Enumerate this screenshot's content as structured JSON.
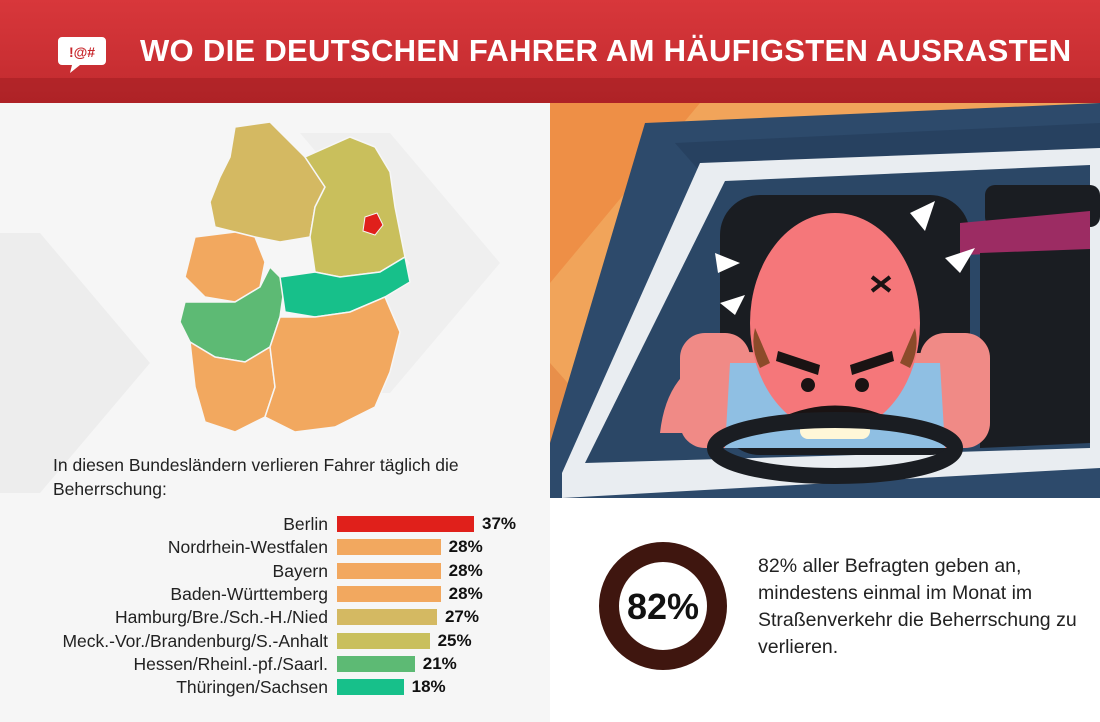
{
  "header": {
    "title": "WO DIE DEUTSCHEN FAHRER AM HÄUFIGSTEN AUSRASTEN",
    "logo_text": "!@#"
  },
  "colors": {
    "header_red": "#d03236",
    "berlin_red": "#e0201b",
    "orange": "#f2a85f",
    "olive": "#cabb5d",
    "green_mid": "#5dbd78",
    "green": "#1fbf86",
    "donut_dark": "#3f160f",
    "donut_red": "#e21b1b"
  },
  "intro_text": "In diesen Bundesländern verlieren Fahrer täglich die Beherrschung:",
  "chart_data": {
    "type": "bar",
    "orientation": "horizontal",
    "categories": [
      "Berlin",
      "Nordrhein-Westfalen",
      "Bayern",
      "Baden-Württemberg",
      "Hamburg/Bre./Sch.-H./Nied",
      "Meck.-Vor./Brandenburg/S.-Anhalt",
      "Hessen/Rheinl.-pf./Saarl.",
      "Thüringen/Sachsen"
    ],
    "values": [
      37,
      28,
      28,
      28,
      27,
      25,
      21,
      18
    ],
    "value_labels": [
      "37%",
      "28%",
      "28%",
      "28%",
      "27%",
      "25%",
      "21%",
      "18%"
    ],
    "bar_colors": [
      "#e0201b",
      "#f2a85f",
      "#f2a85f",
      "#f2a85f",
      "#d4b962",
      "#c9bf5c",
      "#5dba74",
      "#17c08a"
    ],
    "unit": "%",
    "xlim": [
      0,
      37
    ],
    "grid": false,
    "legend": "none"
  },
  "stat": {
    "value": 82,
    "label": "82%",
    "text": "82% aller Befragten geben an, mindestens einmal im Monat im Straßenverkehr die Beherrschung zu verlieren."
  }
}
